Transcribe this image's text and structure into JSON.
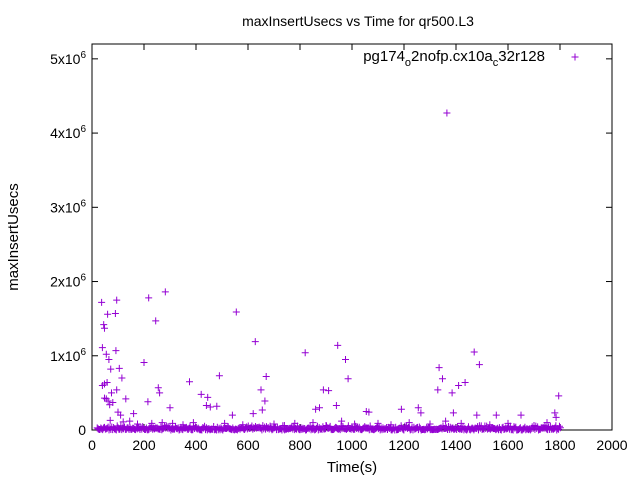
{
  "chart_data": {
    "type": "scatter",
    "title": "maxInsertUsecs vs Time for qr500.L3",
    "xlabel": "Time(s)",
    "ylabel": "maxInsertUsecs",
    "xlim": [
      0,
      2000
    ],
    "ylim": [
      0,
      5200000
    ],
    "x_ticks": [
      {
        "value": 0,
        "label": "0"
      },
      {
        "value": 200,
        "label": "200"
      },
      {
        "value": 400,
        "label": "400"
      },
      {
        "value": 600,
        "label": "600"
      },
      {
        "value": 800,
        "label": "800"
      },
      {
        "value": 1000,
        "label": "1000"
      },
      {
        "value": 1200,
        "label": "1200"
      },
      {
        "value": 1400,
        "label": "1400"
      },
      {
        "value": 1600,
        "label": "1600"
      },
      {
        "value": 1800,
        "label": "1800"
      },
      {
        "value": 2000,
        "label": "2000"
      }
    ],
    "y_ticks": [
      {
        "value": 0,
        "label": "0",
        "base": "0",
        "exp": ""
      },
      {
        "value": 1000000,
        "label": "1x10^6",
        "base": "1x10",
        "exp": "6"
      },
      {
        "value": 2000000,
        "label": "2x10^6",
        "base": "2x10",
        "exp": "6"
      },
      {
        "value": 3000000,
        "label": "3x10^6",
        "base": "3x10",
        "exp": "6"
      },
      {
        "value": 4000000,
        "label": "4x10^6",
        "base": "4x10",
        "exp": "6"
      },
      {
        "value": 5000000,
        "label": "5x10^6",
        "base": "5x10",
        "exp": "6"
      }
    ],
    "legend": {
      "placement": "top-right",
      "label_parts": [
        "pg174",
        "o",
        "2nofp.cx10a",
        "c",
        "32r128"
      ],
      "label": "pg174_o2nofp.cx10a_c32r128"
    },
    "series": [
      {
        "name": "pg174_o2nofp.cx10a_c32r128",
        "color": "#9400d3",
        "marker": "plus",
        "points": [
          [
            1365,
            4270000
          ],
          [
            37,
            1720000
          ],
          [
            45,
            1420000
          ],
          [
            48,
            1370000
          ],
          [
            60,
            1560000
          ],
          [
            90,
            1570000
          ],
          [
            95,
            1750000
          ],
          [
            218,
            1780000
          ],
          [
            245,
            1470000
          ],
          [
            282,
            1860000
          ],
          [
            555,
            1590000
          ],
          [
            628,
            1190000
          ],
          [
            820,
            1040000
          ],
          [
            945,
            1140000
          ],
          [
            975,
            950000
          ],
          [
            1470,
            1050000
          ],
          [
            1490,
            880000
          ],
          [
            40,
            1110000
          ],
          [
            55,
            1020000
          ],
          [
            65,
            950000
          ],
          [
            72,
            820000
          ],
          [
            92,
            1070000
          ],
          [
            105,
            830000
          ],
          [
            115,
            700000
          ],
          [
            200,
            910000
          ],
          [
            375,
            650000
          ],
          [
            490,
            730000
          ],
          [
            670,
            720000
          ],
          [
            985,
            690000
          ],
          [
            1335,
            840000
          ],
          [
            1348,
            690000
          ],
          [
            1410,
            600000
          ],
          [
            1435,
            640000
          ],
          [
            40,
            600000
          ],
          [
            48,
            620000
          ],
          [
            58,
            640000
          ],
          [
            75,
            500000
          ],
          [
            95,
            540000
          ],
          [
            130,
            420000
          ],
          [
            255,
            570000
          ],
          [
            260,
            500000
          ],
          [
            420,
            480000
          ],
          [
            445,
            440000
          ],
          [
            650,
            540000
          ],
          [
            665,
            390000
          ],
          [
            890,
            540000
          ],
          [
            910,
            530000
          ],
          [
            1330,
            540000
          ],
          [
            1385,
            500000
          ],
          [
            1795,
            460000
          ],
          [
            48,
            430000
          ],
          [
            55,
            420000
          ],
          [
            62,
            390000
          ],
          [
            68,
            340000
          ],
          [
            80,
            370000
          ],
          [
            100,
            240000
          ],
          [
            110,
            200000
          ],
          [
            160,
            220000
          ],
          [
            215,
            380000
          ],
          [
            300,
            300000
          ],
          [
            440,
            330000
          ],
          [
            455,
            310000
          ],
          [
            480,
            320000
          ],
          [
            540,
            200000
          ],
          [
            620,
            220000
          ],
          [
            655,
            270000
          ],
          [
            860,
            280000
          ],
          [
            875,
            300000
          ],
          [
            940,
            330000
          ],
          [
            1055,
            250000
          ],
          [
            1065,
            240000
          ],
          [
            1190,
            280000
          ],
          [
            1255,
            300000
          ],
          [
            1265,
            230000
          ],
          [
            1390,
            230000
          ],
          [
            1480,
            200000
          ],
          [
            1555,
            200000
          ],
          [
            1650,
            200000
          ],
          [
            1780,
            230000
          ],
          [
            1785,
            170000
          ],
          [
            70,
            130000
          ],
          [
            120,
            110000
          ],
          [
            145,
            120000
          ],
          [
            175,
            80000
          ],
          [
            230,
            90000
          ],
          [
            270,
            100000
          ],
          [
            310,
            90000
          ],
          [
            350,
            70000
          ],
          [
            390,
            100000
          ],
          [
            510,
            90000
          ],
          [
            580,
            70000
          ],
          [
            700,
            80000
          ],
          [
            740,
            60000
          ],
          [
            780,
            90000
          ],
          [
            850,
            100000
          ],
          [
            900,
            60000
          ],
          [
            960,
            120000
          ],
          [
            1010,
            80000
          ],
          [
            1100,
            90000
          ],
          [
            1150,
            70000
          ],
          [
            1220,
            100000
          ],
          [
            1300,
            80000
          ],
          [
            1360,
            120000
          ],
          [
            1420,
            90000
          ],
          [
            1530,
            70000
          ],
          [
            1600,
            90000
          ],
          [
            1700,
            60000
          ],
          [
            1750,
            100000
          ]
        ],
        "dense_band": {
          "x_start": 20,
          "x_end": 1800,
          "x_step": 7,
          "y_min": 0,
          "y_max": 60000
        }
      }
    ]
  }
}
